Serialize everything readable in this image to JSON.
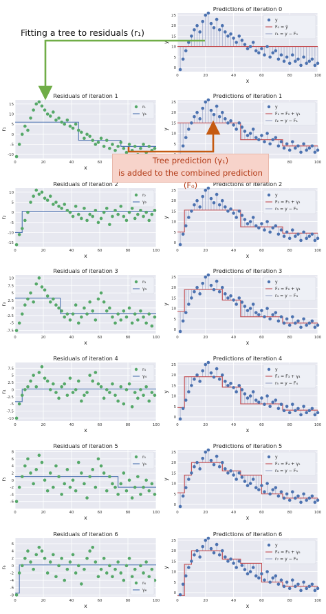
{
  "annotations": {
    "residual_fit": "Fitting a tree to residuals (r₁)",
    "tree_prediction_line1": "Tree prediction (γ₁)",
    "tree_prediction_line2": "is added to the combined prediction (F₀)"
  },
  "colors": {
    "axes_bg": "#e7e8f0",
    "grid": "#ffffff",
    "residual_points": "#55a868",
    "tree_line": "#4c72b0",
    "target_points": "#4c72b0",
    "prediction_line": "#c44e52",
    "residual_stems": "#9aa5c8",
    "annotation_green": "#70ad47",
    "annotation_orange": "#c55a11"
  },
  "chart_data": [
    {
      "type": "scatter",
      "title": "Predictions of iteration 0",
      "xlabel": "x",
      "ylabel": "y",
      "xlim": [
        0,
        100
      ],
      "ylim": [
        -2,
        26
      ],
      "xticks": [
        0,
        20,
        40,
        60,
        80,
        100
      ],
      "yticks": [
        0,
        5,
        10,
        15,
        20,
        25
      ],
      "points_series": "y",
      "step_x": [
        0,
        100
      ],
      "step_y": [
        10,
        10
      ],
      "legend": [
        "y",
        "F₀ = ȳ",
        "r₁ = y − F₀"
      ],
      "grid": true,
      "legend_position": "top-right"
    },
    {
      "type": "scatter",
      "title": "Residuals of iteration 1",
      "xlabel": "x",
      "ylabel": "r₁",
      "xlim": [
        0,
        100
      ],
      "ylim": [
        -12,
        17
      ],
      "xticks": [
        0,
        20,
        40,
        60,
        80,
        100
      ],
      "yticks": [
        -10,
        -5,
        0,
        5,
        10,
        15
      ],
      "points_series": "r1",
      "step_x": [
        0,
        45,
        75,
        100
      ],
      "step_y": [
        6,
        -3,
        -6,
        -6
      ],
      "legend": [
        "r₁",
        "γ₁"
      ],
      "grid": true,
      "legend_position": "top-right"
    },
    {
      "type": "scatter",
      "title": "Predictions of iteration 1",
      "xlabel": "x",
      "ylabel": "y",
      "xlim": [
        0,
        100
      ],
      "ylim": [
        -2,
        26
      ],
      "xticks": [
        0,
        20,
        40,
        60,
        80,
        100
      ],
      "yticks": [
        0,
        5,
        10,
        15,
        20,
        25
      ],
      "points_series": "y",
      "step_x": [
        0,
        45,
        75,
        100
      ],
      "step_y": [
        15,
        7,
        4,
        4
      ],
      "legend": [
        "y",
        "F₁ = F₀ + γ₁",
        "r₂ = y − F₁"
      ],
      "grid": true,
      "legend_position": "top-right"
    },
    {
      "type": "scatter",
      "title": "Residuals of iteration 2",
      "xlabel": "x",
      "ylabel": "r₂",
      "xlim": [
        0,
        100
      ],
      "ylim": [
        -17,
        12
      ],
      "xticks": [
        0,
        20,
        40,
        60,
        80,
        100
      ],
      "yticks": [
        -15,
        -10,
        -5,
        0,
        5,
        10
      ],
      "points_series": "r2",
      "step_x": [
        0,
        5,
        100
      ],
      "step_y": [
        -10,
        0.5,
        0.5
      ],
      "legend": [
        "r₂",
        "γ₂"
      ],
      "grid": true,
      "legend_position": "top-right"
    },
    {
      "type": "scatter",
      "title": "Predictions of iteration 2",
      "xlabel": "x",
      "ylabel": "y",
      "xlim": [
        0,
        100
      ],
      "ylim": [
        -2,
        26
      ],
      "xticks": [
        0,
        20,
        40,
        60,
        80,
        100
      ],
      "yticks": [
        0,
        5,
        10,
        15,
        20,
        25
      ],
      "points_series": "y",
      "step_x": [
        0,
        5,
        45,
        75,
        100
      ],
      "step_y": [
        5,
        15.5,
        7.5,
        4.5,
        4.5
      ],
      "legend": [
        "y",
        "F₂ = F₁ + γ₂",
        "r₃ = y − F₂"
      ],
      "grid": true,
      "legend_position": "top-right"
    },
    {
      "type": "scatter",
      "title": "Residuals of iteration 3",
      "xlabel": "x",
      "ylabel": "r₃",
      "xlim": [
        0,
        100
      ],
      "ylim": [
        -8.5,
        11
      ],
      "xticks": [
        0,
        20,
        40,
        60,
        80,
        100
      ],
      "yticks": [
        -7.5,
        -5.0,
        -2.5,
        0.0,
        2.5,
        5.0,
        7.5,
        10.0
      ],
      "points_series": "r3",
      "step_x": [
        0,
        32,
        100
      ],
      "step_y": [
        3.3,
        -1.8,
        -1.8
      ],
      "legend": [
        "r₃",
        "γ₃"
      ],
      "grid": true,
      "legend_position": "top-right"
    },
    {
      "type": "scatter",
      "title": "Predictions of iteration 3",
      "xlabel": "x",
      "ylabel": "y",
      "xlim": [
        0,
        100
      ],
      "ylim": [
        -2,
        26
      ],
      "xticks": [
        0,
        20,
        40,
        60,
        80,
        100
      ],
      "yticks": [
        0,
        5,
        10,
        15,
        20,
        25
      ],
      "points_series": "y",
      "step_x": [
        0,
        5,
        32,
        45,
        75,
        100
      ],
      "step_y": [
        8.5,
        19,
        14,
        6,
        3,
        3
      ],
      "legend": [
        "y",
        "F₃ = F₂ + γ₃",
        "r₄ = y − F₃"
      ],
      "grid": true,
      "legend_position": "top-right"
    },
    {
      "type": "scatter",
      "title": "Residuals of iteration 4",
      "xlabel": "x",
      "ylabel": "r₄",
      "xlim": [
        0,
        100
      ],
      "ylim": [
        -11,
        9.5
      ],
      "xticks": [
        0,
        20,
        40,
        60,
        80,
        100
      ],
      "yticks": [
        -10.0,
        -7.5,
        -5.0,
        -2.5,
        0.0,
        2.5,
        5.0,
        7.5
      ],
      "points_series": "r4",
      "step_x": [
        0,
        5,
        100
      ],
      "step_y": [
        -4.2,
        0.2,
        0.2
      ],
      "legend": [
        "r₄",
        "γ₄"
      ],
      "grid": true,
      "legend_position": "top-right"
    },
    {
      "type": "scatter",
      "title": "Predictions of iteration 4",
      "xlabel": "x",
      "ylabel": "y",
      "xlim": [
        0,
        100
      ],
      "ylim": [
        -2,
        26
      ],
      "xticks": [
        0,
        20,
        40,
        60,
        80,
        100
      ],
      "yticks": [
        0,
        5,
        10,
        15,
        20,
        25
      ],
      "points_series": "y",
      "step_x": [
        0,
        5,
        32,
        45,
        75,
        100
      ],
      "step_y": [
        4.5,
        19.2,
        14.2,
        6.2,
        3.2,
        3.2
      ],
      "legend": [
        "y",
        "F₄ = F₃ + γ₄",
        "r₅ = y − F₄"
      ],
      "grid": true,
      "legend_position": "top-right"
    },
    {
      "type": "scatter",
      "title": "Residuals of iteration 5",
      "xlabel": "x",
      "ylabel": "r₅",
      "xlim": [
        0,
        100
      ],
      "ylim": [
        -8,
        8.5
      ],
      "xticks": [
        0,
        20,
        40,
        60,
        80,
        100
      ],
      "yticks": [
        -6,
        -4,
        -2,
        0,
        2,
        4,
        6,
        8
      ],
      "points_series": "r5",
      "step_x": [
        0,
        73,
        100
      ],
      "step_y": [
        1,
        -2,
        -2
      ],
      "legend": [
        "r₅",
        "γ₅"
      ],
      "grid": true,
      "legend_position": "top-right"
    },
    {
      "type": "scatter",
      "title": "Predictions of iteration 5",
      "xlabel": "x",
      "ylabel": "y",
      "xlim": [
        0,
        100
      ],
      "ylim": [
        -2,
        26
      ],
      "xticks": [
        0,
        20,
        40,
        60,
        80,
        100
      ],
      "yticks": [
        0,
        5,
        10,
        15,
        20,
        25
      ],
      "points_series": "y",
      "step_x": [
        0,
        5,
        10,
        32,
        45,
        60,
        75,
        100
      ],
      "step_y": [
        5.5,
        14,
        20,
        16,
        14,
        5,
        3,
        3
      ],
      "legend": [
        "y",
        "F₅ = F₄ + γ₅",
        "r₆ = y − F₅"
      ],
      "grid": true,
      "legend_position": "top-right"
    },
    {
      "type": "scatter",
      "title": "Residuals of iteration 6",
      "xlabel": "x",
      "ylabel": "r₆",
      "xlim": [
        0,
        100
      ],
      "ylim": [
        -8.5,
        7.5
      ],
      "xticks": [
        0,
        20,
        40,
        60,
        80,
        100
      ],
      "yticks": [
        -8,
        -6,
        -4,
        -2,
        0,
        2,
        4,
        6
      ],
      "points_series": "r6",
      "step_x": [
        0,
        3,
        100
      ],
      "step_y": [
        -7.5,
        0.2,
        0.2
      ],
      "legend": [
        "r₆",
        "γ₆"
      ],
      "grid": true,
      "legend_position": "bottom-right"
    },
    {
      "type": "scatter",
      "title": "Predictions of iteration 6",
      "xlabel": "x",
      "ylabel": "y",
      "xlim": [
        0,
        100
      ],
      "ylim": [
        -2,
        26
      ],
      "xticks": [
        0,
        20,
        40,
        60,
        80,
        100
      ],
      "yticks": [
        0,
        5,
        10,
        15,
        20,
        25
      ],
      "points_series": "y",
      "step_x": [
        0,
        5,
        10,
        32,
        45,
        60,
        75,
        100
      ],
      "step_y": [
        -1.5,
        13.5,
        20,
        16,
        14,
        5,
        3,
        3
      ],
      "legend": [
        "y",
        "F₆ = F₅ + γ₆",
        "r₇ = y − F₆"
      ],
      "grid": true,
      "legend_position": "top-right"
    }
  ],
  "series_points": {
    "y": {
      "x": [
        2,
        4,
        6,
        8,
        10,
        12,
        14,
        16,
        18,
        20,
        22,
        24,
        26,
        28,
        30,
        32,
        34,
        36,
        38,
        40,
        42,
        44,
        46,
        48,
        50,
        52,
        54,
        56,
        58,
        60,
        62,
        64,
        66,
        68,
        70,
        72,
        74,
        76,
        78,
        80,
        82,
        84,
        86,
        88,
        90,
        92,
        94,
        96,
        98,
        100
      ],
      "y": [
        -1,
        4,
        8,
        12,
        15,
        18,
        20,
        17,
        22,
        25,
        26,
        21,
        19,
        23,
        18,
        20,
        17,
        15,
        16,
        14,
        12,
        15,
        13,
        11,
        9,
        10,
        12,
        8,
        7,
        9,
        6,
        10,
        5,
        7,
        8,
        4,
        6,
        3,
        5,
        2,
        6,
        3,
        4,
        1,
        5,
        2,
        3,
        4,
        1,
        2
      ]
    },
    "r1": {
      "x": [
        1,
        3,
        5,
        7,
        9,
        11,
        13,
        15,
        17,
        19,
        21,
        23,
        25,
        27,
        29,
        31,
        33,
        35,
        37,
        39,
        41,
        43,
        45,
        47,
        49,
        51,
        53,
        55,
        57,
        59,
        61,
        63,
        65,
        67,
        69,
        71,
        73,
        75,
        77,
        79,
        81,
        83,
        85,
        87,
        89,
        91,
        93,
        95,
        97,
        99
      ],
      "y": [
        -11,
        -5,
        0,
        4,
        2,
        8,
        12,
        15,
        16,
        14,
        12,
        10,
        9,
        11,
        7,
        8,
        6,
        5,
        7,
        4,
        3,
        5,
        2,
        1,
        -2,
        0,
        -1,
        -3,
        -5,
        -4,
        -2,
        -6,
        -3,
        -7,
        -5,
        -8,
        -6,
        -4,
        -7,
        -9,
        -5,
        -8,
        -6,
        -10,
        -7,
        -5,
        -9,
        -6,
        -8,
        -7
      ]
    },
    "r2": {
      "x": [
        1,
        3,
        5,
        7,
        9,
        11,
        13,
        15,
        17,
        19,
        21,
        23,
        25,
        27,
        29,
        31,
        33,
        35,
        37,
        39,
        41,
        43,
        45,
        47,
        49,
        51,
        53,
        55,
        57,
        59,
        61,
        63,
        65,
        67,
        69,
        71,
        73,
        75,
        77,
        79,
        81,
        83,
        85,
        87,
        89,
        91,
        93,
        95,
        97,
        99
      ],
      "y": [
        -16,
        -11,
        -8,
        -4,
        0,
        5,
        8,
        11,
        9,
        10,
        7,
        6,
        8,
        4,
        5,
        3,
        2,
        4,
        1,
        0,
        -2,
        3,
        -1,
        -3,
        2,
        -4,
        -1,
        -2,
        1,
        -5,
        -3,
        0,
        2,
        -6,
        -2,
        1,
        -1,
        3,
        -2,
        -4,
        0,
        2,
        -3,
        -1,
        1,
        -2,
        0,
        -4,
        -1,
        1
      ]
    },
    "r3": {
      "x": [
        1,
        3,
        5,
        7,
        9,
        11,
        13,
        15,
        17,
        19,
        21,
        23,
        25,
        27,
        29,
        31,
        33,
        35,
        37,
        39,
        41,
        43,
        45,
        47,
        49,
        51,
        53,
        55,
        57,
        59,
        61,
        63,
        65,
        67,
        69,
        71,
        73,
        75,
        77,
        79,
        81,
        83,
        85,
        87,
        89,
        91,
        93,
        95,
        97,
        99
      ],
      "y": [
        -7.5,
        -5,
        -2,
        1,
        3,
        5,
        2,
        8,
        10,
        7,
        6,
        4,
        2,
        3,
        1,
        0,
        -1,
        -3,
        -2,
        -4,
        -2,
        1,
        -5,
        -3,
        0,
        -2,
        2,
        -1,
        -4,
        3,
        5,
        2,
        -1,
        0,
        -3,
        -5,
        -2,
        -4,
        -1,
        -3,
        0,
        -5,
        -2,
        -4,
        -1,
        -3,
        -5,
        -2,
        -6,
        -3
      ]
    },
    "r4": {
      "x": [
        1,
        3,
        5,
        7,
        9,
        11,
        13,
        15,
        17,
        19,
        21,
        23,
        25,
        27,
        29,
        31,
        33,
        35,
        37,
        39,
        41,
        43,
        45,
        47,
        49,
        51,
        53,
        55,
        57,
        59,
        61,
        63,
        65,
        67,
        69,
        71,
        73,
        75,
        77,
        79,
        81,
        83,
        85,
        87,
        89,
        91,
        93,
        95,
        97,
        99
      ],
      "y": [
        -10,
        -5,
        -2,
        0,
        1,
        3,
        5,
        1,
        6,
        8,
        4,
        3,
        0,
        2,
        -1,
        -3,
        1,
        2,
        -2,
        4,
        -1,
        0,
        3,
        -4,
        -2,
        -1,
        5,
        3,
        6,
        2,
        1,
        -3,
        0,
        -1,
        2,
        -2,
        -4,
        1,
        -5,
        0,
        2,
        -6,
        -1,
        -3,
        0,
        -2,
        1,
        -4,
        -1,
        -2
      ]
    },
    "r5": {
      "x": [
        1,
        3,
        5,
        7,
        9,
        11,
        13,
        15,
        17,
        19,
        21,
        23,
        25,
        27,
        29,
        31,
        33,
        35,
        37,
        39,
        41,
        43,
        45,
        47,
        49,
        51,
        53,
        55,
        57,
        59,
        61,
        63,
        65,
        67,
        69,
        71,
        73,
        75,
        77,
        79,
        81,
        83,
        85,
        87,
        89,
        91,
        93,
        95,
        97,
        99
      ],
      "y": [
        -6,
        -2,
        1,
        4,
        6,
        2,
        -1,
        3,
        7,
        5,
        0,
        -3,
        2,
        -2,
        4,
        1,
        -4,
        -1,
        3,
        -2,
        0,
        -3,
        5,
        2,
        -1,
        -5,
        1,
        3,
        -2,
        6,
        4,
        2,
        -3,
        1,
        -1,
        -2,
        -4,
        -1,
        2,
        -3,
        0,
        -5,
        -2,
        1,
        -4,
        -2,
        0,
        -3,
        -1,
        -4
      ]
    },
    "r6": {
      "x": [
        1,
        3,
        5,
        7,
        9,
        11,
        13,
        15,
        17,
        19,
        21,
        23,
        25,
        27,
        29,
        31,
        33,
        35,
        37,
        39,
        41,
        43,
        45,
        47,
        49,
        51,
        53,
        55,
        57,
        59,
        61,
        63,
        65,
        67,
        69,
        71,
        73,
        75,
        77,
        79,
        81,
        83,
        85,
        87,
        89,
        91,
        93,
        95,
        97,
        99
      ],
      "y": [
        -8,
        -2,
        0,
        2,
        4,
        1,
        -1,
        3,
        5,
        4,
        2,
        -2,
        1,
        3,
        -3,
        0,
        2,
        -4,
        -1,
        1,
        3,
        -2,
        0,
        -5,
        -1,
        2,
        4,
        5,
        1,
        -3,
        -1,
        2,
        -2,
        0,
        -3,
        -1,
        1,
        -2,
        -4,
        0,
        2,
        -3,
        -1,
        -5,
        0,
        -2,
        1,
        -3,
        -1,
        -4
      ]
    }
  }
}
